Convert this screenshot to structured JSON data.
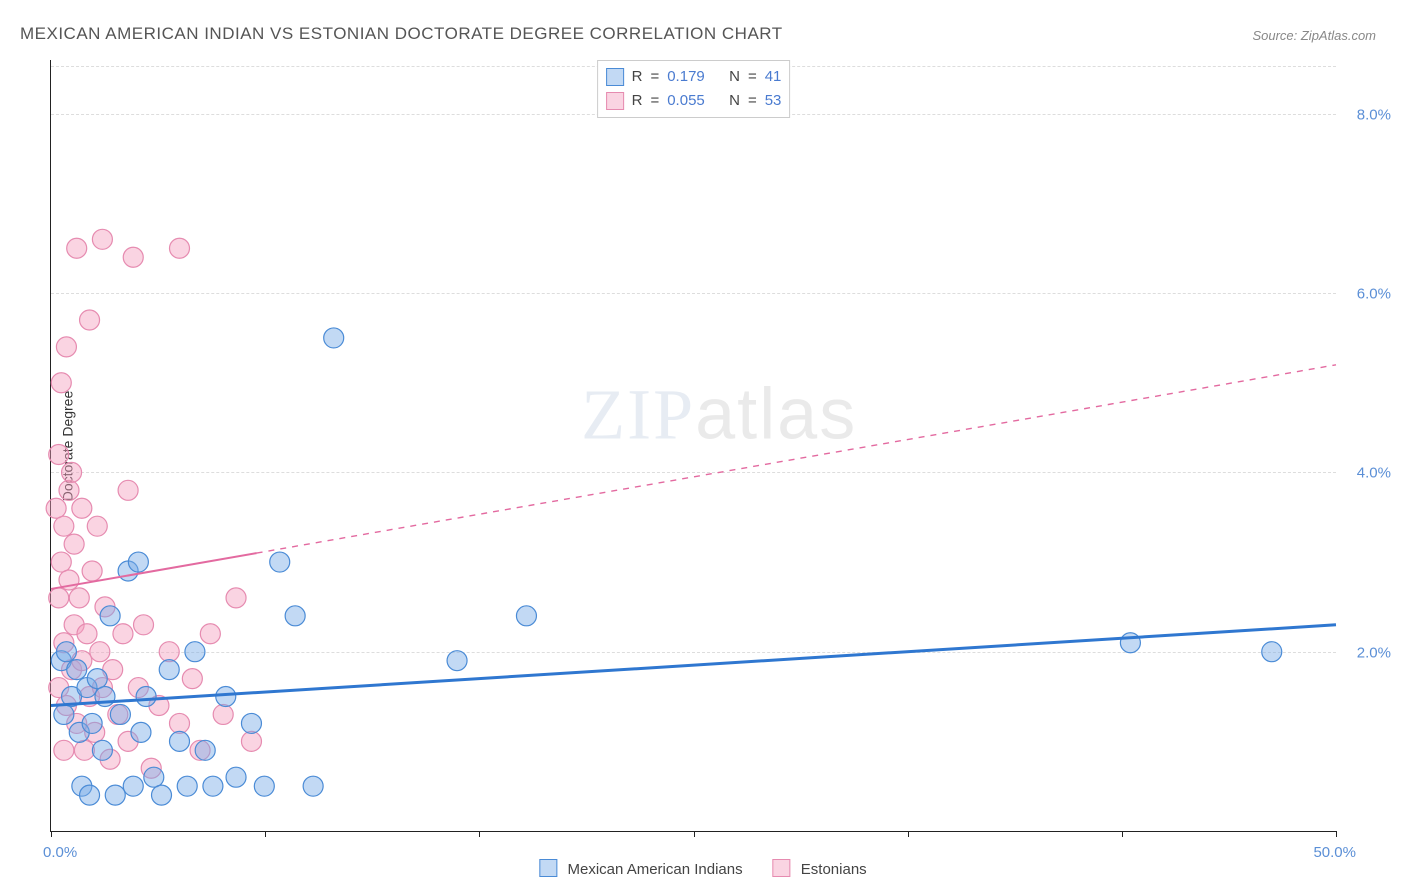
{
  "title": "MEXICAN AMERICAN INDIAN VS ESTONIAN DOCTORATE DEGREE CORRELATION CHART",
  "source": "Source: ZipAtlas.com",
  "ylabel": "Doctorate Degree",
  "watermark_a": "ZIP",
  "watermark_b": "atlas",
  "chart": {
    "type": "scatter",
    "xlim": [
      0,
      50
    ],
    "ylim": [
      0,
      8.6
    ],
    "y_gridlines": [
      2,
      4,
      6,
      8
    ],
    "y_tick_labels": [
      "2.0%",
      "4.0%",
      "6.0%",
      "8.0%"
    ],
    "x_ticks": [
      0,
      8.33,
      16.66,
      25,
      33.33,
      41.66,
      50
    ],
    "x_min_label": "0.0%",
    "x_max_label": "50.0%",
    "grid_color": "#dddddd",
    "axis_color": "#222222",
    "background_color": "#ffffff",
    "tick_label_color": "#5b8fd6"
  },
  "series": {
    "mai": {
      "label": "Mexican American Indians",
      "fill": "rgba(120,170,230,0.45)",
      "stroke": "#4a8bd6",
      "marker_r": 10,
      "R": "0.179",
      "N": "41",
      "trend": {
        "x1": 0,
        "y1": 1.4,
        "x2": 50,
        "y2": 2.3,
        "solid_until_x": 50,
        "color": "#2f77d0",
        "width": 3
      },
      "points": [
        [
          0.4,
          1.9
        ],
        [
          0.5,
          1.3
        ],
        [
          0.6,
          2.0
        ],
        [
          0.8,
          1.5
        ],
        [
          1.0,
          1.8
        ],
        [
          1.1,
          1.1
        ],
        [
          1.2,
          0.5
        ],
        [
          1.4,
          1.6
        ],
        [
          1.5,
          0.4
        ],
        [
          1.6,
          1.2
        ],
        [
          1.8,
          1.7
        ],
        [
          2.0,
          0.9
        ],
        [
          2.1,
          1.5
        ],
        [
          2.3,
          2.4
        ],
        [
          2.5,
          0.4
        ],
        [
          2.7,
          1.3
        ],
        [
          3.0,
          2.9
        ],
        [
          3.2,
          0.5
        ],
        [
          3.5,
          1.1
        ],
        [
          3.7,
          1.5
        ],
        [
          4.0,
          0.6
        ],
        [
          4.3,
          0.4
        ],
        [
          4.6,
          1.8
        ],
        [
          5.0,
          1.0
        ],
        [
          5.3,
          0.5
        ],
        [
          5.6,
          2.0
        ],
        [
          6.0,
          0.9
        ],
        [
          6.3,
          0.5
        ],
        [
          6.8,
          1.5
        ],
        [
          7.2,
          0.6
        ],
        [
          7.8,
          1.2
        ],
        [
          8.3,
          0.5
        ],
        [
          8.9,
          3.0
        ],
        [
          9.5,
          2.4
        ],
        [
          10.2,
          0.5
        ],
        [
          11.0,
          5.5
        ],
        [
          15.8,
          1.9
        ],
        [
          18.5,
          2.4
        ],
        [
          42.0,
          2.1
        ],
        [
          47.5,
          2.0
        ],
        [
          3.4,
          3.0
        ]
      ]
    },
    "est": {
      "label": "Estonians",
      "fill": "rgba(245,160,190,0.45)",
      "stroke": "#e68bb0",
      "marker_r": 10,
      "R": "0.055",
      "N": "53",
      "trend": {
        "x1": 0,
        "y1": 2.7,
        "x2": 50,
        "y2": 5.2,
        "solid_until_x": 8,
        "color": "#e36aa0",
        "width": 2
      },
      "points": [
        [
          0.2,
          3.6
        ],
        [
          0.3,
          2.6
        ],
        [
          0.3,
          4.2
        ],
        [
          0.4,
          3.0
        ],
        [
          0.4,
          5.0
        ],
        [
          0.5,
          2.1
        ],
        [
          0.5,
          3.4
        ],
        [
          0.6,
          1.4
        ],
        [
          0.6,
          5.4
        ],
        [
          0.7,
          2.8
        ],
        [
          0.7,
          3.8
        ],
        [
          0.8,
          1.8
        ],
        [
          0.8,
          4.0
        ],
        [
          0.9,
          2.3
        ],
        [
          0.9,
          3.2
        ],
        [
          1.0,
          1.2
        ],
        [
          1.0,
          6.5
        ],
        [
          1.1,
          2.6
        ],
        [
          1.2,
          1.9
        ],
        [
          1.2,
          3.6
        ],
        [
          1.3,
          0.9
        ],
        [
          1.4,
          2.2
        ],
        [
          1.5,
          5.7
        ],
        [
          1.5,
          1.5
        ],
        [
          1.6,
          2.9
        ],
        [
          1.7,
          1.1
        ],
        [
          1.8,
          3.4
        ],
        [
          1.9,
          2.0
        ],
        [
          2.0,
          6.6
        ],
        [
          2.0,
          1.6
        ],
        [
          2.1,
          2.5
        ],
        [
          2.3,
          0.8
        ],
        [
          2.4,
          1.8
        ],
        [
          2.6,
          1.3
        ],
        [
          2.8,
          2.2
        ],
        [
          3.0,
          3.8
        ],
        [
          3.0,
          1.0
        ],
        [
          3.2,
          6.4
        ],
        [
          3.4,
          1.6
        ],
        [
          3.6,
          2.3
        ],
        [
          3.9,
          0.7
        ],
        [
          4.2,
          1.4
        ],
        [
          4.6,
          2.0
        ],
        [
          5.0,
          1.2
        ],
        [
          5.0,
          6.5
        ],
        [
          5.5,
          1.7
        ],
        [
          5.8,
          0.9
        ],
        [
          6.2,
          2.2
        ],
        [
          6.7,
          1.3
        ],
        [
          7.2,
          2.6
        ],
        [
          7.8,
          1.0
        ],
        [
          0.3,
          1.6
        ],
        [
          0.5,
          0.9
        ]
      ]
    }
  },
  "legend_top": {
    "r_label": "R",
    "n_label": "N",
    "eq": "="
  },
  "legend_bottom_labels": {
    "mai": "Mexican American Indians",
    "est": "Estonians"
  }
}
